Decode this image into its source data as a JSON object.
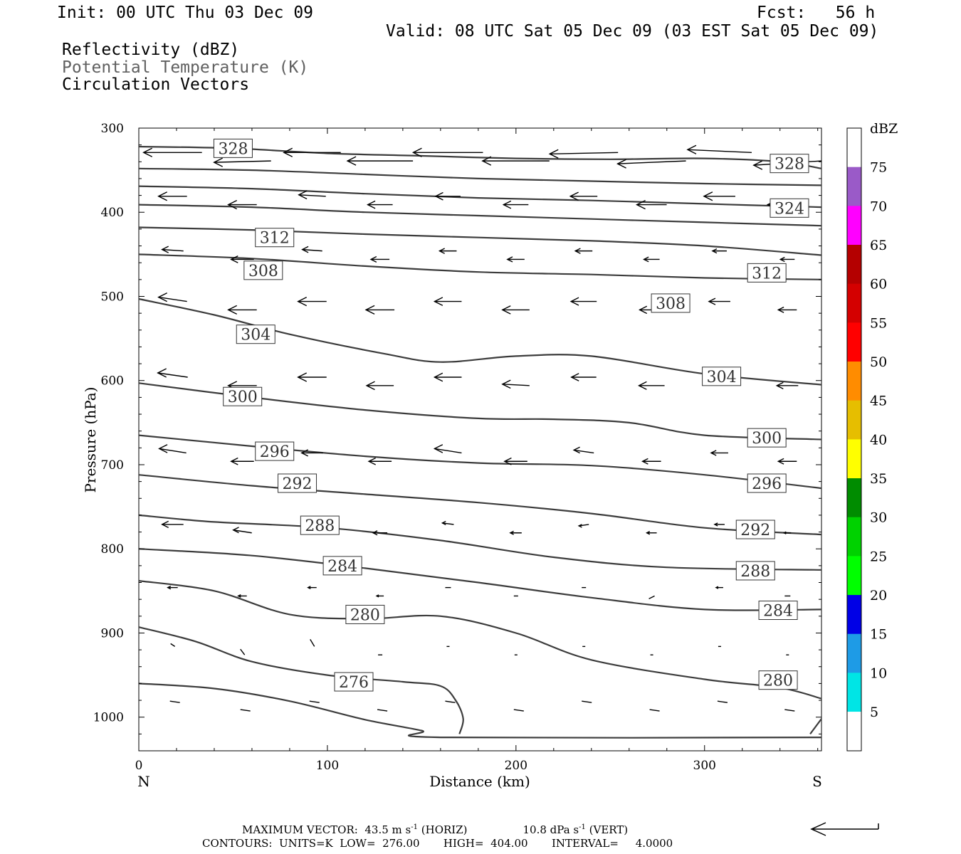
{
  "header": {
    "init": "Init: 00 UTC Thu 03 Dec 09",
    "fcst": "Fcst:   56 h",
    "valid": "Valid: 08 UTC Sat 05 Dec 09 (03 EST Sat 05 Dec 09)",
    "fields": [
      "Reflectivity (dBZ)",
      "Potential Temperature (K)",
      "Circulation Vectors"
    ]
  },
  "footer": {
    "max_vector": "MAXIMUM VECTOR:  43.5 m s",
    "max_vector_horiz": "(HORIZ)",
    "vert_value": "10.8 dPa s",
    "vert_suffix": "(VERT)",
    "exp": "-1",
    "contours": "CONTOURS:  UNITS=K  LOW=  276.00       HIGH=  404.00       INTERVAL=     4.0000"
  },
  "colors": {
    "contour": "#3c3c3c",
    "vector": "#000000",
    "colorbar": [
      "#ffffff",
      "#00e5e5",
      "#1e9be6",
      "#0000e6",
      "#00ff00",
      "#00d200",
      "#008c00",
      "#ffff00",
      "#e6be00",
      "#ff8c00",
      "#ff0000",
      "#d40000",
      "#b40000",
      "#ff00ff",
      "#9a5ac8",
      "#ffffff"
    ]
  },
  "chart_data": {
    "type": "line",
    "title": "",
    "xlabel": "Distance (km)",
    "ylabel": "Pressure (hPa)",
    "xlim": [
      0,
      362
    ],
    "ylim": [
      1040,
      300
    ],
    "x_ticks": [
      0,
      100,
      200,
      300
    ],
    "y_ticks": [
      300,
      400,
      500,
      600,
      700,
      800,
      900,
      1000
    ],
    "x_end_labels": {
      "left": "N",
      "right": "S"
    },
    "y_scale": "linear",
    "grid": false,
    "colorbar": {
      "unit": "dBZ",
      "levels": [
        5,
        10,
        15,
        20,
        25,
        30,
        35,
        40,
        45,
        50,
        55,
        60,
        65,
        70,
        75
      ]
    },
    "contours": [
      {
        "level": "328",
        "labels": [
          [
            50,
            324
          ],
          [
            345,
            342
          ]
        ],
        "points": [
          [
            0,
            322
          ],
          [
            50,
            324
          ],
          [
            100,
            330
          ],
          [
            150,
            333
          ],
          [
            200,
            336
          ],
          [
            250,
            337
          ],
          [
            300,
            336
          ],
          [
            340,
            340
          ],
          [
            362,
            348
          ]
        ]
      },
      {
        "level": "",
        "labels": [],
        "points": [
          [
            0,
            348
          ],
          [
            60,
            350
          ],
          [
            120,
            355
          ],
          [
            180,
            360
          ],
          [
            240,
            363
          ],
          [
            300,
            366
          ],
          [
            362,
            368
          ]
        ]
      },
      {
        "level": "",
        "labels": [],
        "points": [
          [
            0,
            369
          ],
          [
            60,
            372
          ],
          [
            120,
            378
          ],
          [
            180,
            383
          ],
          [
            240,
            386
          ],
          [
            300,
            390
          ],
          [
            362,
            394
          ]
        ]
      },
      {
        "level": "324",
        "labels": [
          [
            345,
            395
          ]
        ],
        "points": [
          [
            0,
            391
          ],
          [
            60,
            394
          ],
          [
            120,
            400
          ],
          [
            180,
            404
          ],
          [
            240,
            408
          ],
          [
            300,
            412
          ],
          [
            362,
            416
          ]
        ]
      },
      {
        "level": "",
        "labels": [],
        "points": [
          [
            0,
            418
          ],
          [
            60,
            421
          ],
          [
            120,
            426
          ],
          [
            180,
            430
          ],
          [
            240,
            434
          ],
          [
            300,
            440
          ],
          [
            362,
            451
          ]
        ]
      },
      {
        "level": "312",
        "labels": [
          [
            72,
            430
          ],
          [
            333,
            472
          ]
        ],
        "points": [
          [
            0,
            450
          ],
          [
            60,
            455
          ],
          [
            120,
            464
          ],
          [
            180,
            471
          ],
          [
            240,
            474
          ],
          [
            300,
            478
          ],
          [
            362,
            480
          ]
        ]
      },
      {
        "level": "308",
        "labels": [
          [
            66,
            469
          ],
          [
            282,
            508
          ]
        ],
        "points": [
          [
            0,
            503
          ],
          [
            40,
            522
          ],
          [
            80,
            545
          ],
          [
            130,
            568
          ],
          [
            160,
            578
          ],
          [
            200,
            571
          ],
          [
            240,
            571
          ],
          [
            300,
            592
          ],
          [
            362,
            605
          ]
        ]
      },
      {
        "level": "304",
        "labels": [
          [
            62,
            545
          ],
          [
            309,
            595
          ]
        ],
        "points": [
          [
            0,
            603
          ],
          [
            60,
            620
          ],
          [
            120,
            635
          ],
          [
            180,
            645
          ],
          [
            220,
            646
          ],
          [
            260,
            650
          ],
          [
            300,
            665
          ],
          [
            362,
            670
          ]
        ]
      },
      {
        "level": "300",
        "labels": [
          [
            55,
            619
          ],
          [
            333,
            668
          ]
        ],
        "points": [
          [
            0,
            665
          ],
          [
            60,
            678
          ],
          [
            120,
            690
          ],
          [
            180,
            698
          ],
          [
            240,
            701
          ],
          [
            300,
            712
          ],
          [
            362,
            728
          ]
        ]
      },
      {
        "level": "296",
        "labels": [
          [
            72,
            684
          ],
          [
            333,
            722
          ]
        ],
        "points": [
          [
            0,
            712
          ],
          [
            60,
            725
          ],
          [
            120,
            735
          ],
          [
            180,
            745
          ],
          [
            240,
            758
          ],
          [
            300,
            775
          ],
          [
            362,
            783
          ]
        ]
      },
      {
        "level": "292",
        "labels": [
          [
            84,
            722
          ],
          [
            327,
            777
          ]
        ],
        "points": [
          [
            0,
            760
          ],
          [
            40,
            768
          ],
          [
            100,
            775
          ],
          [
            160,
            790
          ],
          [
            220,
            810
          ],
          [
            280,
            822
          ],
          [
            362,
            825
          ]
        ]
      },
      {
        "level": "288",
        "labels": [
          [
            96,
            772
          ],
          [
            327,
            826
          ]
        ],
        "points": [
          [
            0,
            800
          ],
          [
            60,
            808
          ],
          [
            120,
            823
          ],
          [
            180,
            840
          ],
          [
            240,
            858
          ],
          [
            300,
            872
          ],
          [
            362,
            872
          ]
        ]
      },
      {
        "level": "284",
        "labels": [
          [
            108,
            820
          ],
          [
            339,
            873
          ]
        ],
        "points": [
          [
            0,
            838
          ],
          [
            40,
            850
          ],
          [
            80,
            878
          ],
          [
            120,
            883
          ],
          [
            160,
            880
          ],
          [
            200,
            900
          ],
          [
            240,
            932
          ],
          [
            300,
            955
          ],
          [
            340,
            965
          ],
          [
            362,
            978
          ]
        ]
      },
      {
        "level": "280",
        "labels": [
          [
            120,
            878
          ],
          [
            339,
            956
          ]
        ],
        "points": [
          [
            0,
            893
          ],
          [
            30,
            910
          ],
          [
            60,
            934
          ],
          [
            100,
            950
          ],
          [
            140,
            958
          ],
          [
            160,
            963
          ],
          [
            168,
            980
          ],
          [
            172,
            1002
          ],
          [
            170,
            1020
          ]
        ]
      },
      {
        "level": "276",
        "labels": [
          [
            114,
            958
          ]
        ],
        "points": [
          [
            0,
            960
          ],
          [
            40,
            966
          ],
          [
            80,
            981
          ],
          [
            120,
            1003
          ],
          [
            150,
            1016
          ],
          [
            160,
            1024
          ],
          [
            362,
            1024
          ]
        ]
      },
      {
        "level": "",
        "labels": [],
        "points": [
          [
            356,
            1020
          ],
          [
            362,
            1002
          ]
        ]
      }
    ],
    "vectors_note": "circulation vectors (horizontal wind, mostly toward N aloft)"
  }
}
